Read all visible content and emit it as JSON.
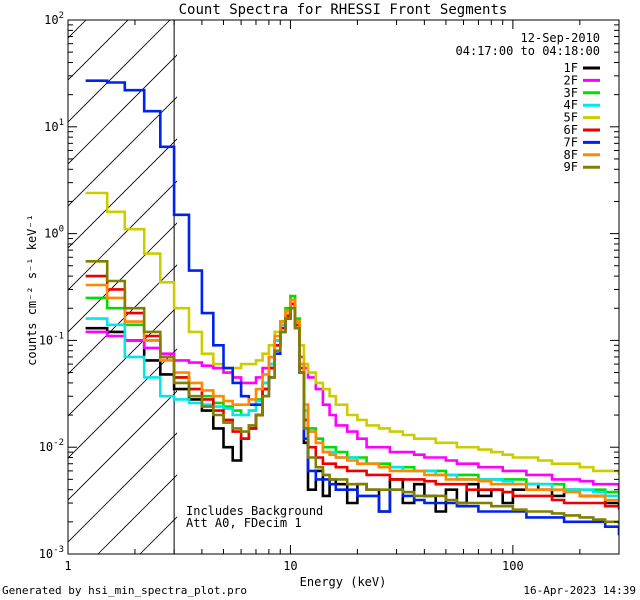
{
  "chart_data": {
    "type": "line",
    "title": "Count Spectra for RHESSI Front Segments",
    "date": "12-Sep-2010",
    "time_range": "04:17:00 to 04:18:00",
    "xlabel": "Energy (keV)",
    "ylabel": "counts cm⁻² s⁻¹ keV⁻¹",
    "x_scale": "log",
    "y_scale": "log",
    "xlim": [
      1,
      300
    ],
    "ylim": [
      0.001,
      100
    ],
    "x_ticks": [
      {
        "value": 1,
        "label": "1"
      },
      {
        "value": 10,
        "label": "10"
      },
      {
        "value": 100,
        "label": "100"
      }
    ],
    "y_ticks": [
      {
        "value": 100,
        "base": "10",
        "exp": "2"
      },
      {
        "value": 10,
        "base": "10",
        "exp": "1"
      },
      {
        "value": 1,
        "base": "10",
        "exp": "0"
      },
      {
        "value": 0.1,
        "base": "10",
        "exp": "-1"
      },
      {
        "value": 0.01,
        "base": "10",
        "exp": "-2"
      },
      {
        "value": 0.001,
        "base": "10",
        "exp": "-3"
      }
    ],
    "hatched_region_keV": [
      1,
      3
    ],
    "annotations": [
      "Includes Background",
      "Att A0, FDecim 1"
    ],
    "legend_position": "top-right",
    "energy_keV": [
      1.2,
      1.5,
      1.8,
      2.2,
      2.6,
      3.0,
      3.5,
      4.0,
      4.5,
      5.0,
      5.5,
      6.0,
      6.5,
      7.0,
      7.5,
      8.0,
      8.5,
      9.0,
      9.5,
      10.0,
      10.5,
      11.0,
      11.5,
      12.0,
      13.0,
      14.0,
      15.0,
      16.0,
      18.0,
      20.0,
      22.0,
      25.0,
      28.0,
      32.0,
      36.0,
      40.0,
      45.0,
      50.0,
      56.0,
      62.0,
      70.0,
      80.0,
      90.0,
      100.0,
      115.0,
      130.0,
      150.0,
      170.0,
      200.0,
      230.0,
      260.0,
      300.0
    ],
    "series": [
      {
        "name": "1F",
        "color": "#000000",
        "values": [
          0.13,
          0.12,
          0.1,
          0.065,
          0.048,
          0.035,
          0.028,
          0.022,
          0.015,
          0.01,
          0.0075,
          0.012,
          0.015,
          0.02,
          0.035,
          0.055,
          0.09,
          0.13,
          0.16,
          0.22,
          0.14,
          0.05,
          0.011,
          0.004,
          0.006,
          0.0035,
          0.005,
          0.0045,
          0.003,
          0.0045,
          0.004,
          0.0025,
          0.005,
          0.003,
          0.0045,
          0.0035,
          0.0025,
          0.004,
          0.003,
          0.0045,
          0.0035,
          0.004,
          0.003,
          0.004,
          0.0045,
          0.004,
          0.0035,
          0.004,
          0.0035,
          0.0035,
          0.003,
          0.0028
        ]
      },
      {
        "name": "2F",
        "color": "#ff00ff",
        "values": [
          0.12,
          0.11,
          0.1,
          0.085,
          0.075,
          0.065,
          0.062,
          0.058,
          0.055,
          0.05,
          0.045,
          0.04,
          0.04,
          0.045,
          0.055,
          0.07,
          0.1,
          0.14,
          0.18,
          0.22,
          0.15,
          0.07,
          0.055,
          0.045,
          0.035,
          0.025,
          0.02,
          0.016,
          0.014,
          0.012,
          0.01,
          0.01,
          0.009,
          0.009,
          0.0085,
          0.008,
          0.008,
          0.0075,
          0.007,
          0.007,
          0.0065,
          0.0065,
          0.006,
          0.006,
          0.0055,
          0.0055,
          0.005,
          0.005,
          0.0048,
          0.0045,
          0.0045,
          0.004
        ]
      },
      {
        "name": "3F",
        "color": "#00dd00",
        "values": [
          0.25,
          0.2,
          0.14,
          0.1,
          0.07,
          0.045,
          0.035,
          0.03,
          0.026,
          0.024,
          0.022,
          0.02,
          0.022,
          0.028,
          0.04,
          0.06,
          0.1,
          0.15,
          0.2,
          0.26,
          0.16,
          0.06,
          0.025,
          0.015,
          0.012,
          0.01,
          0.01,
          0.009,
          0.008,
          0.008,
          0.007,
          0.007,
          0.0065,
          0.0065,
          0.006,
          0.006,
          0.006,
          0.0055,
          0.0055,
          0.0055,
          0.005,
          0.005,
          0.005,
          0.005,
          0.0045,
          0.0045,
          0.0045,
          0.004,
          0.004,
          0.004,
          0.0038,
          0.0035
        ]
      },
      {
        "name": "4F",
        "color": "#00e8e8",
        "values": [
          0.16,
          0.14,
          0.07,
          0.045,
          0.03,
          0.028,
          0.026,
          0.025,
          0.024,
          0.023,
          0.02,
          0.02,
          0.022,
          0.027,
          0.04,
          0.06,
          0.1,
          0.14,
          0.18,
          0.22,
          0.14,
          0.06,
          0.022,
          0.014,
          0.011,
          0.009,
          0.009,
          0.008,
          0.008,
          0.007,
          0.007,
          0.0065,
          0.0065,
          0.006,
          0.006,
          0.006,
          0.0055,
          0.0055,
          0.005,
          0.005,
          0.005,
          0.005,
          0.0048,
          0.0045,
          0.0045,
          0.0045,
          0.004,
          0.004,
          0.004,
          0.0038,
          0.0035,
          0.0032
        ]
      },
      {
        "name": "5F",
        "color": "#cccc00",
        "values": [
          2.4,
          1.6,
          1.1,
          0.65,
          0.35,
          0.2,
          0.12,
          0.075,
          0.06,
          0.055,
          0.055,
          0.06,
          0.06,
          0.065,
          0.075,
          0.09,
          0.12,
          0.15,
          0.18,
          0.2,
          0.15,
          0.09,
          0.06,
          0.05,
          0.04,
          0.035,
          0.03,
          0.025,
          0.02,
          0.018,
          0.016,
          0.015,
          0.014,
          0.013,
          0.012,
          0.012,
          0.011,
          0.011,
          0.01,
          0.01,
          0.0095,
          0.009,
          0.0085,
          0.008,
          0.008,
          0.0075,
          0.007,
          0.007,
          0.0065,
          0.006,
          0.006,
          0.0055
        ]
      },
      {
        "name": "6F",
        "color": "#ee0000",
        "values": [
          0.4,
          0.3,
          0.18,
          0.11,
          0.07,
          0.045,
          0.035,
          0.028,
          0.022,
          0.018,
          0.014,
          0.012,
          0.015,
          0.02,
          0.035,
          0.055,
          0.09,
          0.13,
          0.17,
          0.22,
          0.14,
          0.055,
          0.018,
          0.01,
          0.008,
          0.007,
          0.007,
          0.0065,
          0.006,
          0.006,
          0.0055,
          0.0055,
          0.005,
          0.005,
          0.005,
          0.0048,
          0.0045,
          0.0045,
          0.0045,
          0.004,
          0.004,
          0.004,
          0.0038,
          0.0035,
          0.0035,
          0.0035,
          0.0032,
          0.003,
          0.003,
          0.003,
          0.0028,
          0.0026
        ]
      },
      {
        "name": "7F",
        "color": "#0022ee",
        "values": [
          27,
          26,
          22,
          14,
          6.5,
          1.5,
          0.45,
          0.18,
          0.09,
          0.055,
          0.04,
          0.03,
          0.025,
          0.025,
          0.03,
          0.045,
          0.075,
          0.12,
          0.16,
          0.2,
          0.13,
          0.05,
          0.012,
          0.006,
          0.005,
          0.005,
          0.0045,
          0.004,
          0.004,
          0.0035,
          0.0035,
          0.0025,
          0.004,
          0.0035,
          0.0032,
          0.003,
          0.003,
          0.003,
          0.0028,
          0.0028,
          0.0025,
          0.0025,
          0.0025,
          0.0025,
          0.0022,
          0.0022,
          0.0022,
          0.002,
          0.002,
          0.002,
          0.0018,
          0.0015
        ]
      },
      {
        "name": "8F",
        "color": "#ff8800",
        "values": [
          0.33,
          0.25,
          0.15,
          0.1,
          0.065,
          0.05,
          0.04,
          0.034,
          0.03,
          0.027,
          0.025,
          0.025,
          0.028,
          0.035,
          0.048,
          0.07,
          0.11,
          0.15,
          0.19,
          0.24,
          0.15,
          0.06,
          0.025,
          0.014,
          0.011,
          0.009,
          0.0085,
          0.008,
          0.0075,
          0.007,
          0.007,
          0.0065,
          0.006,
          0.006,
          0.006,
          0.0055,
          0.0055,
          0.005,
          0.005,
          0.005,
          0.0048,
          0.0045,
          0.0045,
          0.0045,
          0.004,
          0.004,
          0.004,
          0.0038,
          0.0035,
          0.0035,
          0.0032,
          0.003
        ]
      },
      {
        "name": "9F",
        "color": "#808000",
        "values": [
          0.55,
          0.36,
          0.2,
          0.12,
          0.07,
          0.04,
          0.03,
          0.024,
          0.02,
          0.017,
          0.015,
          0.014,
          0.016,
          0.02,
          0.03,
          0.045,
          0.08,
          0.12,
          0.16,
          0.2,
          0.13,
          0.05,
          0.015,
          0.008,
          0.0065,
          0.0055,
          0.005,
          0.005,
          0.0045,
          0.0045,
          0.004,
          0.004,
          0.004,
          0.0038,
          0.0035,
          0.0035,
          0.0035,
          0.0032,
          0.003,
          0.003,
          0.003,
          0.0028,
          0.0028,
          0.0026,
          0.0025,
          0.0025,
          0.0024,
          0.0023,
          0.0022,
          0.0021,
          0.002,
          0.0019
        ]
      }
    ]
  },
  "footer": {
    "generator": "Generated by hsi_min_spectra_plot.pro",
    "timestamp": "16-Apr-2023 14:39"
  },
  "colors": {
    "background": "#ffffff",
    "axes": "#000000"
  }
}
